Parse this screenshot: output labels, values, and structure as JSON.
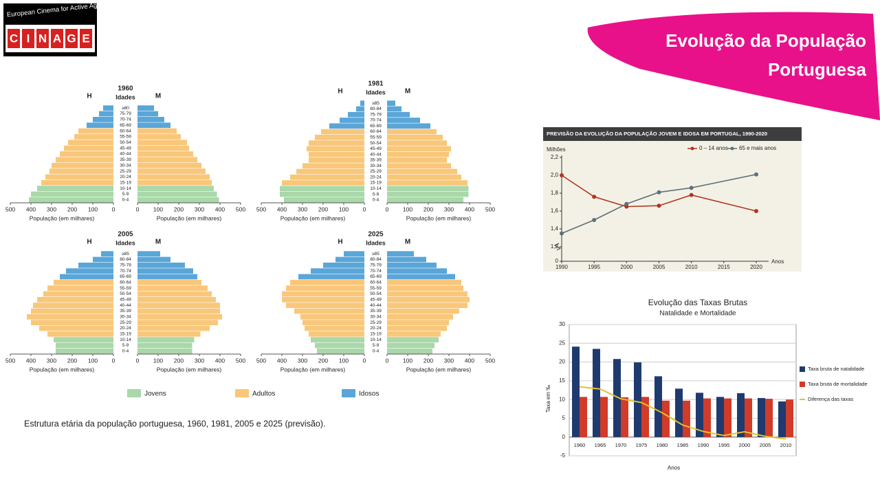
{
  "logo": {
    "tagline": "European Cinema for Active Ageing",
    "letters": [
      "C",
      "I",
      "N",
      "A",
      "G",
      "E"
    ]
  },
  "title": "Evolução da População Portuguesa",
  "pyramid_legend": [
    {
      "name": "Jovens",
      "color": "#a9d8a9"
    },
    {
      "name": "Adultos",
      "color": "#f9c77a"
    },
    {
      "name": "Idosos",
      "color": "#5aa6d8"
    }
  ],
  "caption": "Estrutura etária da população portuguesa, 1960, 1981, 2005 e 2025 (previsão).",
  "chart_data": [
    {
      "type": "pyramid",
      "title": "1960",
      "y_label": "Idades",
      "x_label": "População (em milhares)",
      "categories": [
        "0-4",
        "5-9",
        "10-14",
        "15-19",
        "20-24",
        "25-29",
        "30-34",
        "35-39",
        "40-44",
        "45-49",
        "50-54",
        "55-59",
        "60-64",
        "65-69",
        "70-74",
        "75-79",
        "≥80"
      ],
      "class": [
        0,
        0,
        0,
        1,
        1,
        1,
        1,
        1,
        1,
        1,
        1,
        1,
        1,
        2,
        2,
        2,
        2
      ],
      "series": [
        {
          "name": "H",
          "values": [
            410,
            400,
            370,
            350,
            330,
            310,
            300,
            280,
            260,
            240,
            220,
            190,
            170,
            130,
            100,
            70,
            50
          ]
        },
        {
          "name": "M",
          "values": [
            395,
            385,
            370,
            360,
            350,
            330,
            310,
            290,
            270,
            250,
            240,
            210,
            190,
            160,
            130,
            100,
            80
          ]
        }
      ],
      "xlim": [
        0,
        500
      ],
      "xticks": [
        0,
        100,
        200,
        300,
        400,
        500
      ]
    },
    {
      "type": "pyramid",
      "title": "1981",
      "y_label": "Idades",
      "x_label": "População (em milhares)",
      "categories": [
        "0-4",
        "5-9",
        "10-14",
        "15-19",
        "20-24",
        "25-29",
        "30-34",
        "35-39",
        "40-44",
        "45-49",
        "50-54",
        "55-59",
        "60-64",
        "65-69",
        "70-74",
        "75-79",
        "80-84",
        "≥85"
      ],
      "class": [
        0,
        0,
        0,
        1,
        1,
        1,
        1,
        1,
        1,
        1,
        1,
        1,
        1,
        2,
        2,
        2,
        2,
        2
      ],
      "series": [
        {
          "name": "H",
          "values": [
            390,
            410,
            410,
            400,
            360,
            330,
            300,
            270,
            270,
            280,
            270,
            240,
            210,
            170,
            120,
            80,
            40,
            20
          ]
        },
        {
          "name": "M",
          "values": [
            370,
            395,
            395,
            390,
            360,
            340,
            310,
            290,
            300,
            310,
            290,
            270,
            240,
            210,
            160,
            110,
            70,
            40
          ]
        }
      ],
      "xlim": [
        0,
        500
      ],
      "xticks": [
        0,
        100,
        200,
        300,
        400,
        500
      ]
    },
    {
      "type": "pyramid",
      "title": "2005",
      "y_label": "Idades",
      "x_label": "População (em milhares)",
      "categories": [
        "0-4",
        "5-9",
        "10-14",
        "15-19",
        "20-24",
        "25-29",
        "30-34",
        "35-39",
        "40-44",
        "45-49",
        "50-54",
        "55-59",
        "60-64",
        "65-69",
        "70-74",
        "75-79",
        "80-84",
        "≥85"
      ],
      "class": [
        0,
        0,
        0,
        1,
        1,
        1,
        1,
        1,
        1,
        1,
        1,
        1,
        1,
        2,
        2,
        2,
        2,
        2
      ],
      "series": [
        {
          "name": "H",
          "values": [
            280,
            280,
            290,
            320,
            360,
            400,
            420,
            400,
            390,
            370,
            340,
            320,
            290,
            260,
            230,
            170,
            100,
            60
          ]
        },
        {
          "name": "M",
          "values": [
            265,
            265,
            275,
            305,
            350,
            390,
            410,
            400,
            400,
            380,
            360,
            340,
            310,
            290,
            270,
            230,
            160,
            110
          ]
        }
      ],
      "xlim": [
        0,
        500
      ],
      "xticks": [
        0,
        100,
        200,
        300,
        400,
        500
      ]
    },
    {
      "type": "pyramid",
      "title": "2025",
      "y_label": "Idades",
      "x_label": "População (em milhares)",
      "categories": [
        "0-4",
        "5-9",
        "10-14",
        "15-19",
        "20-24",
        "25-29",
        "30-34",
        "35-39",
        "40-44",
        "45-49",
        "50-54",
        "55-59",
        "60-64",
        "65-69",
        "70-74",
        "75-79",
        "80-84",
        "≥85"
      ],
      "class": [
        0,
        0,
        0,
        1,
        1,
        1,
        1,
        1,
        1,
        1,
        1,
        1,
        1,
        2,
        2,
        2,
        2,
        2
      ],
      "series": [
        {
          "name": "H",
          "values": [
            230,
            240,
            260,
            270,
            290,
            300,
            310,
            340,
            380,
            400,
            400,
            380,
            360,
            320,
            260,
            200,
            140,
            100
          ]
        },
        {
          "name": "M",
          "values": [
            220,
            230,
            250,
            260,
            290,
            300,
            320,
            350,
            390,
            400,
            390,
            370,
            360,
            330,
            290,
            240,
            190,
            130
          ]
        }
      ],
      "xlim": [
        0,
        500
      ],
      "xticks": [
        0,
        100,
        200,
        300,
        400,
        500
      ]
    },
    {
      "type": "line",
      "title": "PREVISÃO DA EVOLUÇÃO DA POPULAÇÃO JOVEM E IDOSA EM PORTUGAL, 1990-2020",
      "y_label": "Milhões",
      "x_label": "Anos",
      "x": [
        1990,
        1995,
        2000,
        2005,
        2010,
        2020
      ],
      "series": [
        {
          "name": "0 – 14 anos",
          "color": "#b3341e",
          "values": [
            2.0,
            1.76,
            1.65,
            1.66,
            1.78,
            1.6
          ]
        },
        {
          "name": "65 e mais anos",
          "color": "#5f7077",
          "values": [
            1.35,
            1.5,
            1.68,
            1.81,
            1.86,
            2.01
          ]
        }
      ],
      "xlim": [
        1990,
        2020
      ],
      "xticks": [
        1990,
        1995,
        2000,
        2005,
        2010,
        2015,
        2020
      ],
      "ylim": [
        1.2,
        2.2
      ],
      "yticks": [
        0,
        {
          "value": 1.2,
          "label": "1,2"
        },
        {
          "value": 1.4,
          "label": "1,4"
        },
        {
          "value": 1.6,
          "label": "1,6"
        },
        {
          "value": 1.8,
          "label": "1,8"
        },
        {
          "value": 2.0,
          "label": "2,0"
        },
        {
          "value": 2.2,
          "label": "2,2"
        }
      ]
    },
    {
      "type": "bar",
      "title": "Evolução das Taxas Brutas",
      "subtitle": "Natalidade e Mortalidade",
      "y_label": "Taxa em ‰",
      "x_label": "Anos",
      "categories": [
        "1960",
        "1965",
        "1970",
        "1975",
        "1980",
        "1985",
        "1990",
        "1995",
        "2000",
        "2005",
        "2010"
      ],
      "series": [
        {
          "name": "Taxa bruta de natalidade",
          "color": "#1f3a6e",
          "values": [
            24.1,
            23.5,
            20.8,
            19.9,
            16.2,
            12.9,
            11.8,
            10.7,
            11.7,
            10.4,
            9.5
          ]
        },
        {
          "name": "Taxa bruta de mortalidade",
          "color": "#d13b29",
          "values": [
            10.7,
            10.7,
            10.6,
            10.7,
            9.7,
            9.7,
            10.3,
            10.3,
            10.3,
            10.2,
            10.0
          ]
        },
        {
          "name": "Diferença das taxas",
          "color": "#e6c12a",
          "type": "line",
          "values": [
            13.4,
            12.8,
            10.2,
            9.2,
            6.5,
            3.2,
            1.5,
            0.4,
            1.4,
            0.2,
            -0.5
          ]
        }
      ],
      "ylim": [
        -5,
        30
      ],
      "yticks": [
        -5,
        0,
        5,
        10,
        15,
        20,
        25,
        30
      ],
      "grid": true
    }
  ]
}
